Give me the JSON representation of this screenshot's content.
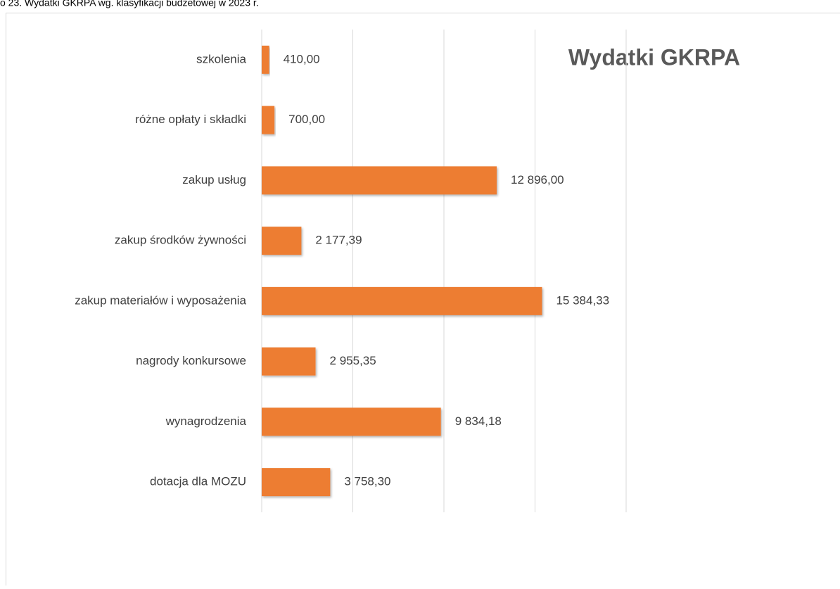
{
  "chart_data": {
    "type": "bar",
    "orientation": "horizontal",
    "caption": "o 23. Wydatki GKRPA wg. klasyfikacji budżetowej w 2023 r.",
    "title": "Wydatki GKRPA",
    "categories": [
      "szkolenia",
      "różne opłaty i składki",
      "zakup usług",
      "zakup środków żywności",
      "zakup materiałów i wyposażenia",
      "nagrody konkursowe",
      "wynagrodzenia",
      "dotacja dla MOZU"
    ],
    "values": [
      410,
      700,
      12896,
      2177.39,
      15384.33,
      2955.35,
      9834.18,
      3758.3
    ],
    "value_labels": [
      "410,00",
      "700,00",
      "12 896,00",
      "2 177,39",
      "15 384,33",
      "2 955,35",
      "9 834,18",
      "3 758,30"
    ],
    "color": "#ed7d31",
    "xlim": [
      0,
      20000
    ],
    "xticks": [
      0,
      5000,
      10000,
      15000,
      20000
    ],
    "grid": true
  }
}
